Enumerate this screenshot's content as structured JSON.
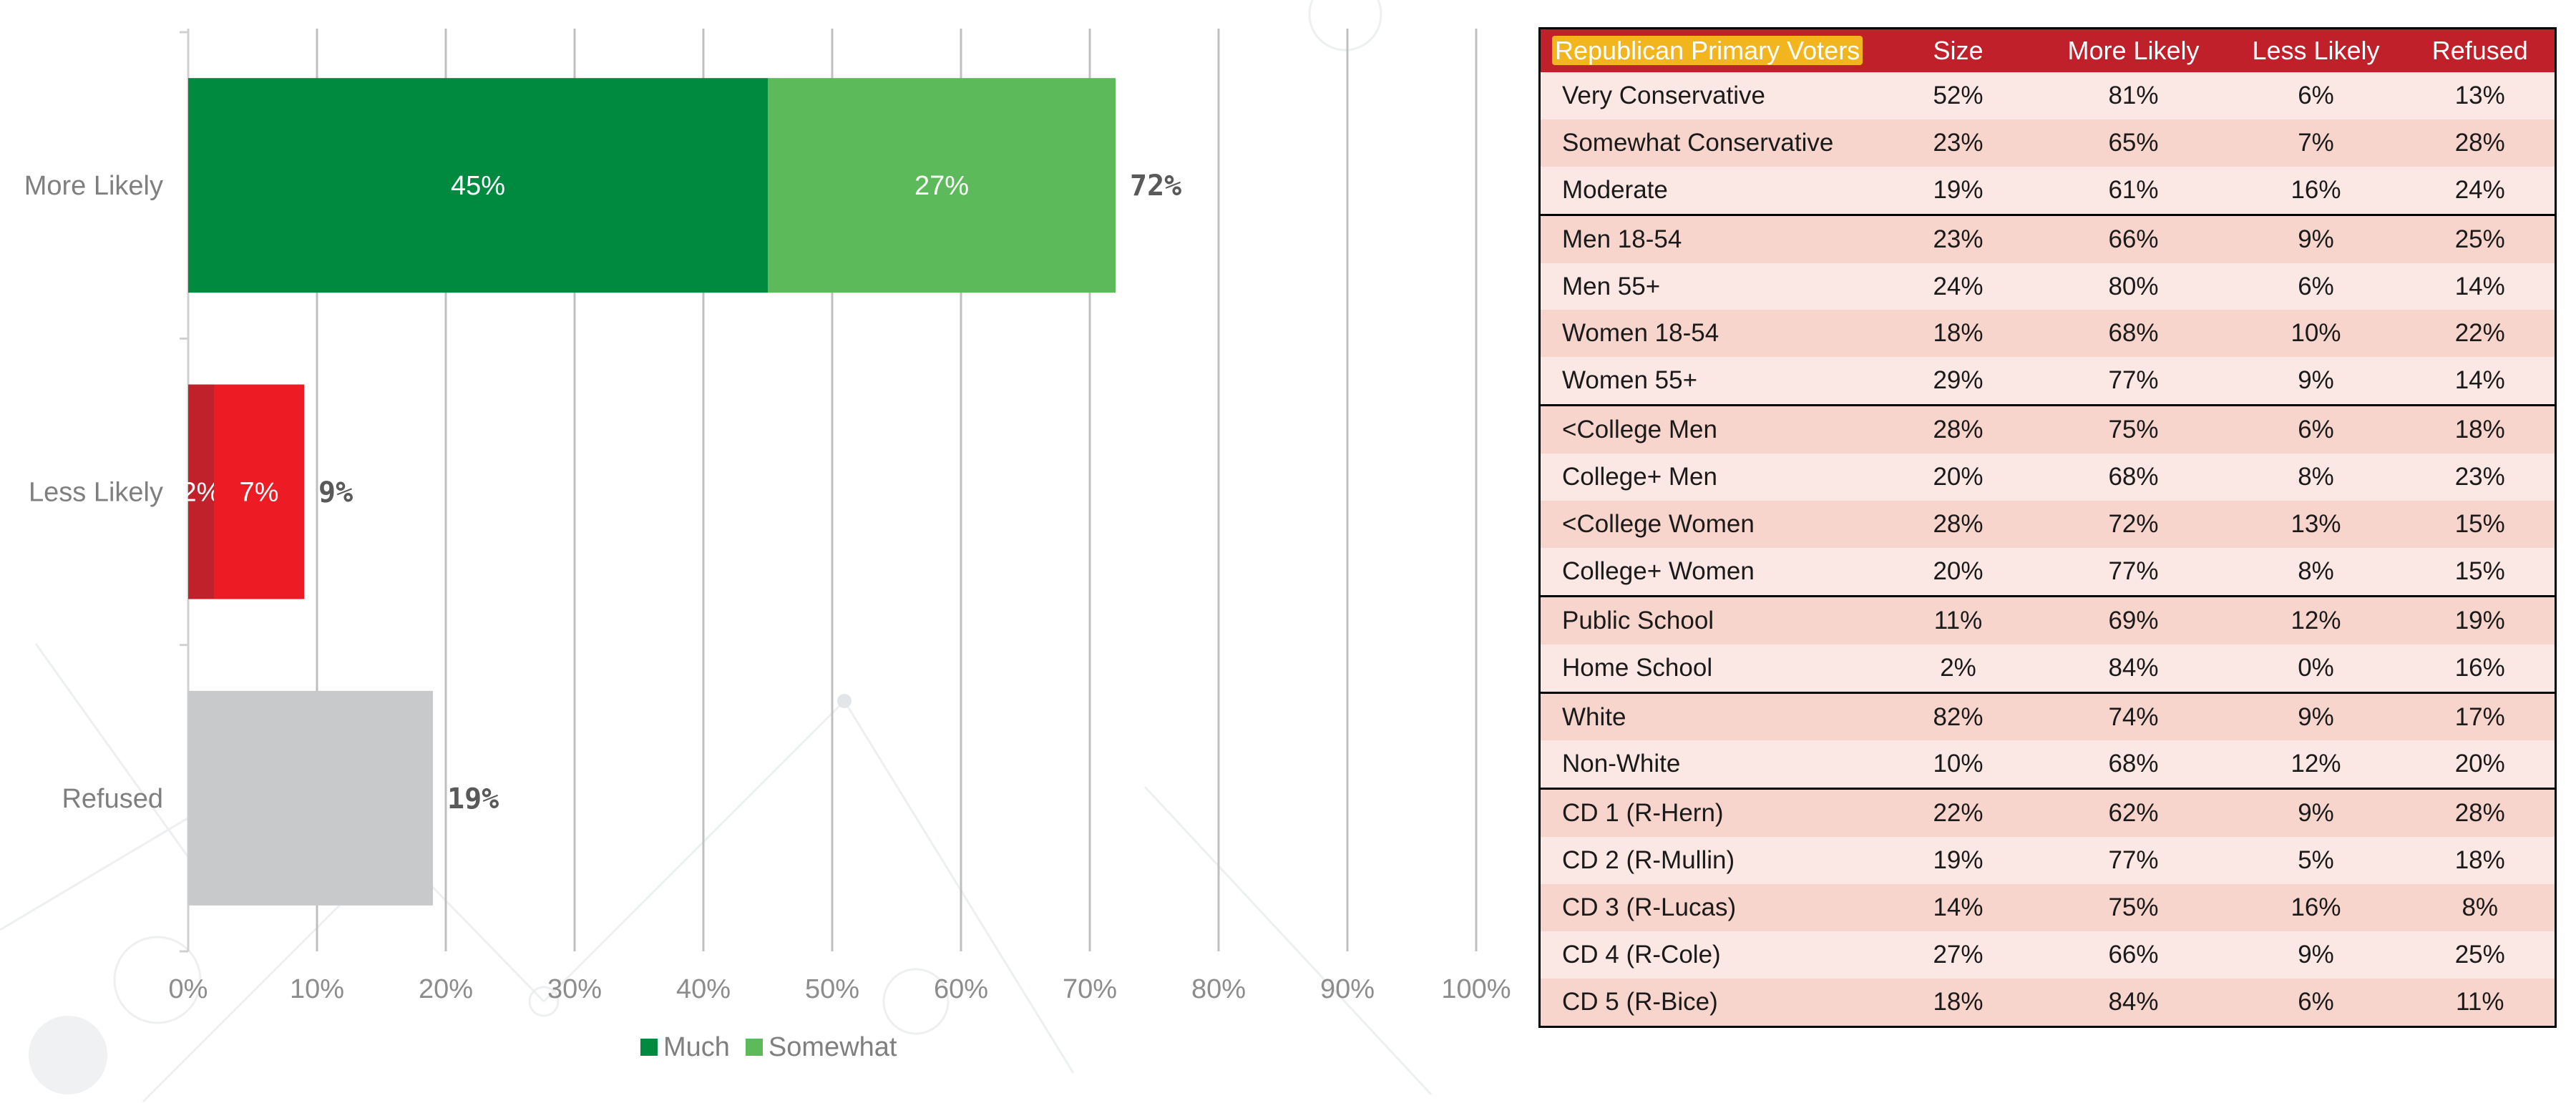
{
  "chart_data": {
    "type": "bar",
    "orientation": "horizontal",
    "stacked": true,
    "categories": [
      "More Likely",
      "Less Likely",
      "Refused"
    ],
    "series": [
      {
        "name": "Much",
        "values": [
          45,
          2,
          null
        ],
        "labels": [
          "45%",
          "2%",
          ""
        ]
      },
      {
        "name": "Somewhat",
        "values": [
          27,
          7,
          null
        ],
        "labels": [
          "27%",
          "7%",
          ""
        ]
      },
      {
        "values": [
          null,
          null,
          19
        ],
        "labels": [
          "",
          "",
          ""
        ]
      }
    ],
    "totals": [
      72,
      9,
      19
    ],
    "total_labels": [
      "72%",
      "9%",
      "19%"
    ],
    "xlim": [
      0,
      100
    ],
    "xticks": [
      "0%",
      "10%",
      "20%",
      "30%",
      "40%",
      "50%",
      "60%",
      "70%",
      "80%",
      "90%",
      "100%"
    ],
    "grid": true,
    "legend": "bottom",
    "colors": {
      "more_much": "#008a40",
      "more_somewhat": "#5dba5a",
      "less_much": "#c1212a",
      "less_somewhat": "#ed1c24",
      "refused": "#c8c9cb"
    }
  },
  "legend": {
    "items": [
      {
        "label": "Much",
        "color": "#008a40"
      },
      {
        "label": "Somewhat",
        "color": "#5dba5a"
      }
    ]
  },
  "table": {
    "headers": [
      "Republican Primary Voters",
      "Size",
      "More Likely",
      "Less Likely",
      "Refused"
    ],
    "groups": [
      [
        [
          "Very Conservative",
          "52%",
          "81%",
          "6%",
          "13%"
        ],
        [
          "Somewhat Conservative",
          "23%",
          "65%",
          "7%",
          "28%"
        ],
        [
          "Moderate",
          "19%",
          "61%",
          "16%",
          "24%"
        ]
      ],
      [
        [
          "Men 18-54",
          "23%",
          "66%",
          "9%",
          "25%"
        ],
        [
          "Men 55+",
          "24%",
          "80%",
          "6%",
          "14%"
        ],
        [
          "Women 18-54",
          "18%",
          "68%",
          "10%",
          "22%"
        ],
        [
          "Women 55+",
          "29%",
          "77%",
          "9%",
          "14%"
        ]
      ],
      [
        [
          "<College Men",
          "28%",
          "75%",
          "6%",
          "18%"
        ],
        [
          "College+ Men",
          "20%",
          "68%",
          "8%",
          "23%"
        ],
        [
          "<College Women",
          "28%",
          "72%",
          "13%",
          "15%"
        ],
        [
          "College+ Women",
          "20%",
          "77%",
          "8%",
          "15%"
        ]
      ],
      [
        [
          "Public School",
          "11%",
          "69%",
          "12%",
          "19%"
        ],
        [
          "Home School",
          "2%",
          "84%",
          "0%",
          "16%"
        ]
      ],
      [
        [
          "White",
          "82%",
          "74%",
          "9%",
          "17%"
        ],
        [
          "Non-White",
          "10%",
          "68%",
          "12%",
          "20%"
        ]
      ],
      [
        [
          "CD 1 (R-Hern)",
          "22%",
          "62%",
          "9%",
          "28%"
        ],
        [
          "CD 2 (R-Mullin)",
          "19%",
          "77%",
          "5%",
          "18%"
        ],
        [
          "CD 3 (R-Lucas)",
          "14%",
          "75%",
          "16%",
          "8%"
        ],
        [
          "CD 4 (R-Cole)",
          "27%",
          "66%",
          "9%",
          "25%"
        ],
        [
          "CD 5 (R-Bice)",
          "18%",
          "84%",
          "6%",
          "11%"
        ]
      ]
    ]
  }
}
